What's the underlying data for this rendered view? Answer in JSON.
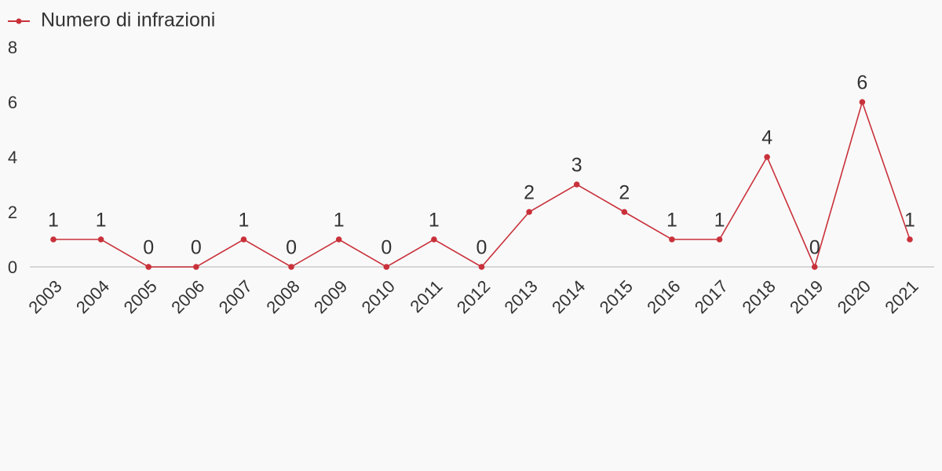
{
  "chart_data": {
    "type": "line",
    "categories": [
      "2003",
      "2004",
      "2005",
      "2006",
      "2007",
      "2008",
      "2009",
      "2010",
      "2011",
      "2012",
      "2013",
      "2014",
      "2015",
      "2016",
      "2017",
      "2018",
      "2019",
      "2020",
      "2021"
    ],
    "series": [
      {
        "name": "Numero di infrazioni",
        "color": "#c9313a",
        "values": [
          1,
          1,
          0,
          0,
          1,
          0,
          1,
          0,
          1,
          0,
          2,
          3,
          2,
          1,
          1,
          4,
          0,
          6,
          1
        ]
      }
    ],
    "ylim": [
      0,
      8
    ],
    "yticks": [
      0,
      2,
      4,
      6,
      8
    ],
    "grid": false,
    "legend": "top-left",
    "data_labels": true
  }
}
